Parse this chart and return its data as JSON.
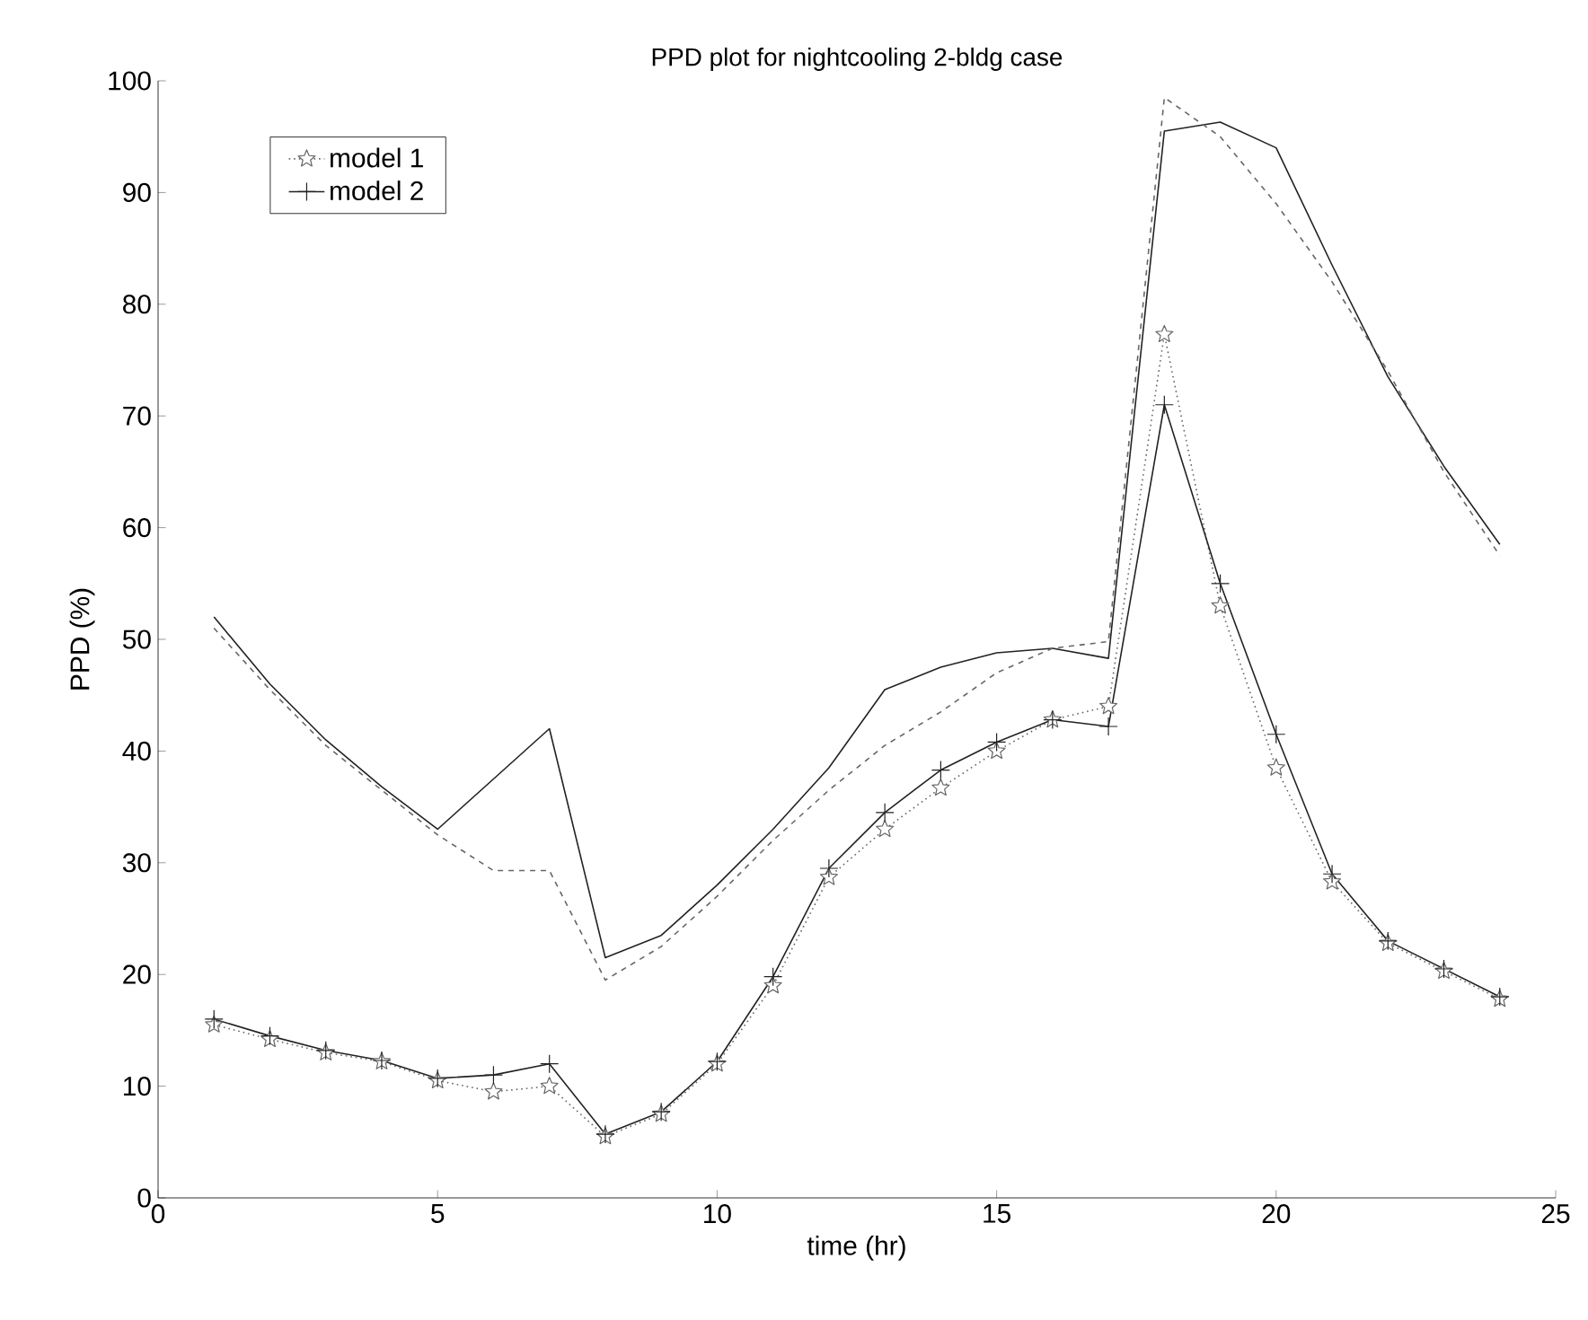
{
  "chart_data": {
    "type": "line",
    "title": "PPD plot for nightcooling 2-bldg case",
    "xlabel": "time (hr)",
    "ylabel": "PPD (%)",
    "x": [
      1,
      2,
      3,
      4,
      5,
      6,
      7,
      8,
      9,
      10,
      11,
      12,
      13,
      14,
      15,
      16,
      17,
      18,
      19,
      20,
      21,
      22,
      23,
      24
    ],
    "series": [
      {
        "name": "model 1",
        "color": "#666666",
        "marker": "star",
        "line_style": "dotted",
        "values": [
          15.5,
          14.2,
          13,
          12.2,
          10.5,
          9.5,
          10,
          5.5,
          7.5,
          12,
          19,
          28.7,
          33,
          36.7,
          40,
          42.8,
          44,
          77.3,
          53,
          38.5,
          28.3,
          22.8,
          20.3,
          17.8
        ]
      },
      {
        "name": "model 2",
        "color": "#222222",
        "marker": "cross",
        "line_style": "solid",
        "values": [
          16,
          14.5,
          13.2,
          12.3,
          10.7,
          11,
          12,
          5.7,
          7.7,
          12.2,
          19.8,
          29.5,
          34.5,
          38.3,
          40.8,
          42.8,
          42.2,
          71,
          55,
          41.5,
          29,
          23,
          20.5,
          18
        ]
      },
      {
        "color": "#222222",
        "marker": "none",
        "line_style": "solid",
        "values": [
          52,
          46,
          41,
          36.8,
          33,
          37.5,
          42,
          21.5,
          23.5,
          28,
          33,
          38.5,
          45.5,
          47.5,
          48.8,
          49.2,
          48.3,
          95.5,
          96.3,
          94,
          83.5,
          73.5,
          65.5,
          58.5
        ]
      },
      {
        "color": "#666666",
        "marker": "none",
        "line_style": "dashed",
        "values": [
          51,
          45.5,
          40.5,
          36.5,
          32.5,
          29.3,
          29.3,
          19.5,
          22.5,
          27,
          32,
          36.5,
          40.5,
          43.5,
          47,
          49.2,
          49.8,
          98.5,
          95,
          89,
          82,
          74,
          65,
          57.5
        ]
      }
    ],
    "xlim": [
      0,
      25
    ],
    "xticks": [
      0,
      5,
      10,
      15,
      20,
      25
    ],
    "ylim": [
      0,
      100
    ],
    "yticks": [
      0,
      10,
      20,
      30,
      40,
      50,
      60,
      70,
      80,
      90,
      100
    ],
    "grid": false,
    "legend": "top left"
  }
}
